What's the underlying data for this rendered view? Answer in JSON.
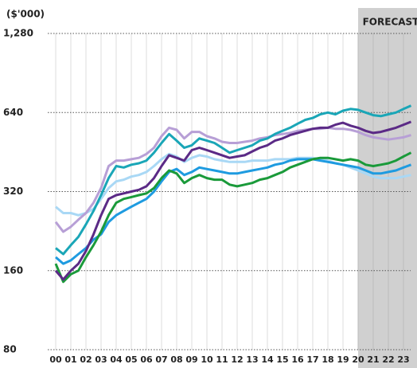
{
  "chart_data": {
    "type": "line",
    "ylabel": "($'000)",
    "log_y": true,
    "grid": true,
    "forecast": {
      "label": "FORECAST",
      "start": 20
    },
    "ylim": [
      80,
      1280
    ],
    "yticks": [
      80,
      160,
      320,
      640,
      {
        "value": 1280,
        "label": "1,280"
      }
    ],
    "xlim": [
      0,
      23
    ],
    "xticks": [
      {
        "value": 0,
        "label": "00"
      },
      {
        "value": 1,
        "label": "01"
      },
      {
        "value": 2,
        "label": "02"
      },
      {
        "value": 3,
        "label": "03"
      },
      {
        "value": 4,
        "label": "04"
      },
      {
        "value": 5,
        "label": "05"
      },
      {
        "value": 6,
        "label": "06"
      },
      {
        "value": 7,
        "label": "07"
      },
      {
        "value": 8,
        "label": "08"
      },
      {
        "value": 9,
        "label": "09"
      },
      10,
      11,
      12,
      13,
      14,
      15,
      16,
      17,
      18,
      19,
      20,
      21,
      22,
      23
    ],
    "x": [
      0,
      0.5,
      1,
      1.5,
      2,
      2.5,
      3,
      3.5,
      4,
      4.5,
      5,
      5.5,
      6,
      6.5,
      7,
      7.5,
      8,
      8.5,
      9,
      9.5,
      10,
      10.5,
      11,
      11.5,
      12,
      12.5,
      13,
      13.5,
      14,
      14.5,
      15,
      15.5,
      16,
      16.5,
      17,
      17.5,
      18,
      18.5,
      19,
      19.5,
      20,
      20.5,
      21,
      21.5,
      22,
      22.5,
      23,
      23.5
    ],
    "series": [
      {
        "color": "#a9d8f5",
        "values": [
          280,
          265,
          265,
          260,
          265,
          275,
          300,
          330,
          350,
          355,
          365,
          370,
          380,
          400,
          425,
          445,
          435,
          415,
          430,
          440,
          435,
          425,
          420,
          415,
          415,
          415,
          420,
          420,
          420,
          425,
          425,
          425,
          430,
          430,
          430,
          425,
          420,
          410,
          405,
          395,
          385,
          375,
          365,
          360,
          360,
          360,
          365,
          370
        ]
      },
      {
        "color": "#b79fd6",
        "values": [
          245,
          225,
          235,
          250,
          265,
          290,
          330,
          400,
          420,
          420,
          425,
          430,
          445,
          470,
          520,
          560,
          550,
          510,
          540,
          540,
          520,
          510,
          495,
          490,
          490,
          495,
          500,
          510,
          515,
          525,
          530,
          535,
          545,
          550,
          555,
          555,
          560,
          555,
          555,
          550,
          540,
          525,
          515,
          510,
          505,
          510,
          515,
          525
        ]
      },
      {
        "color": "#1e9be0",
        "values": [
          180,
          170,
          175,
          185,
          195,
          210,
          220,
          245,
          260,
          270,
          280,
          290,
          300,
          320,
          350,
          380,
          390,
          370,
          380,
          395,
          390,
          385,
          380,
          375,
          375,
          380,
          385,
          390,
          395,
          405,
          410,
          420,
          425,
          425,
          425,
          420,
          415,
          410,
          405,
          400,
          395,
          385,
          375,
          375,
          380,
          385,
          395,
          405
        ]
      },
      {
        "color": "#1a9a3a",
        "values": [
          170,
          145,
          155,
          160,
          180,
          200,
          225,
          260,
          290,
          300,
          305,
          310,
          315,
          330,
          360,
          385,
          375,
          345,
          360,
          370,
          360,
          355,
          355,
          340,
          335,
          340,
          345,
          355,
          360,
          370,
          380,
          395,
          405,
          415,
          425,
          430,
          430,
          425,
          420,
          425,
          420,
          405,
          400,
          405,
          410,
          420,
          435,
          450
        ]
      },
      {
        "color": "#5b2a86",
        "values": [
          160,
          148,
          160,
          170,
          190,
          220,
          260,
          300,
          310,
          315,
          320,
          325,
          335,
          360,
          400,
          440,
          430,
          420,
          460,
          470,
          460,
          450,
          440,
          430,
          435,
          440,
          455,
          470,
          480,
          500,
          510,
          525,
          535,
          545,
          555,
          560,
          560,
          575,
          585,
          570,
          560,
          545,
          535,
          540,
          550,
          560,
          575,
          590
        ]
      },
      {
        "color": "#1aa6b7",
        "values": [
          195,
          185,
          200,
          215,
          240,
          270,
          310,
          360,
          400,
          395,
          405,
          410,
          420,
          450,
          490,
          530,
          500,
          470,
          480,
          510,
          500,
          490,
          470,
          450,
          460,
          470,
          480,
          500,
          510,
          530,
          545,
          560,
          580,
          600,
          610,
          630,
          640,
          630,
          650,
          660,
          655,
          640,
          625,
          620,
          630,
          640,
          660,
          680
        ]
      }
    ]
  }
}
